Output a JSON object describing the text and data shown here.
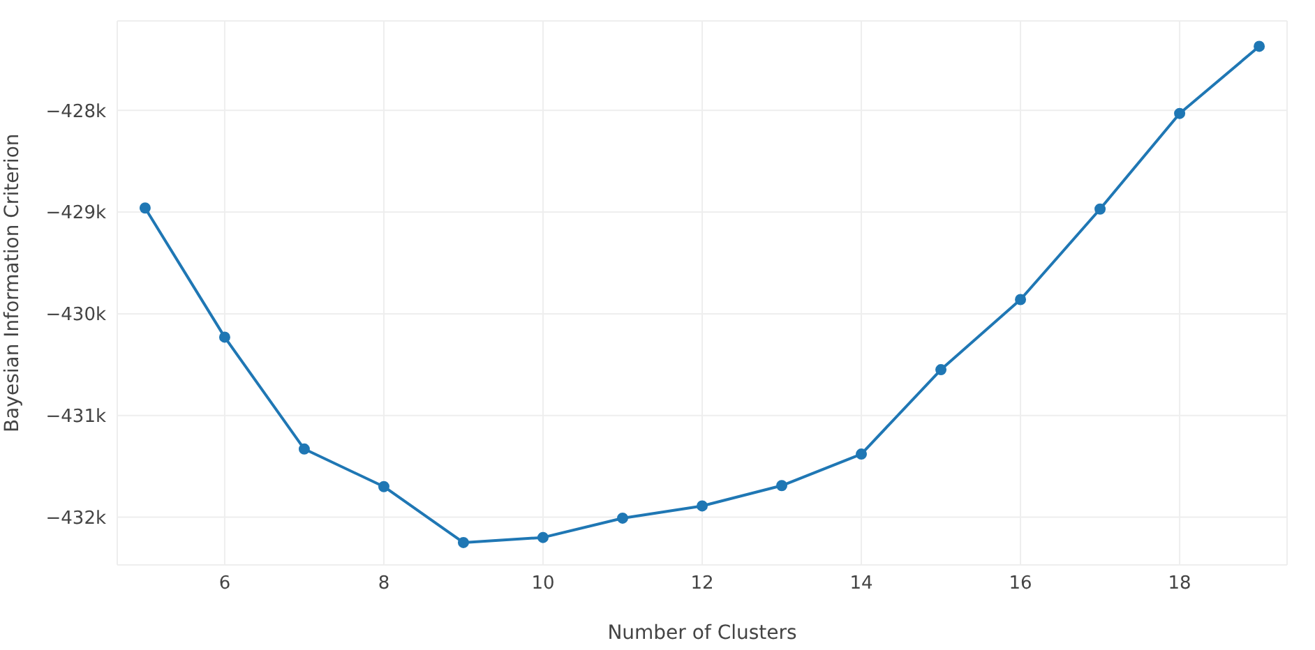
{
  "chart_data": {
    "type": "line",
    "xlabel": "Number of Clusters",
    "ylabel": "Bayesian Information Criterion",
    "x": [
      5,
      6,
      7,
      8,
      9,
      10,
      11,
      12,
      13,
      14,
      15,
      16,
      17,
      18,
      19
    ],
    "series": [
      {
        "color": "#1f77b4",
        "values": [
          -428960,
          -430230,
          -431330,
          -431700,
          -432250,
          -432200,
          -432010,
          -431890,
          -431690,
          -431380,
          -430550,
          -429860,
          -428970,
          -428030,
          -427370
        ]
      }
    ],
    "xlim": [
      4.65,
      19.35
    ],
    "xticks": [
      6,
      8,
      10,
      12,
      14,
      16,
      18
    ],
    "ylim": [
      -432470,
      -427120
    ],
    "yticks": [
      {
        "value": -432000,
        "label": "−432k"
      },
      {
        "value": -431000,
        "label": "−431k"
      },
      {
        "value": -430000,
        "label": "−430k"
      },
      {
        "value": -429000,
        "label": "−429k"
      },
      {
        "value": -428000,
        "label": "−428k"
      }
    ],
    "grid": true,
    "marker": "circle",
    "line_style": "solid"
  }
}
